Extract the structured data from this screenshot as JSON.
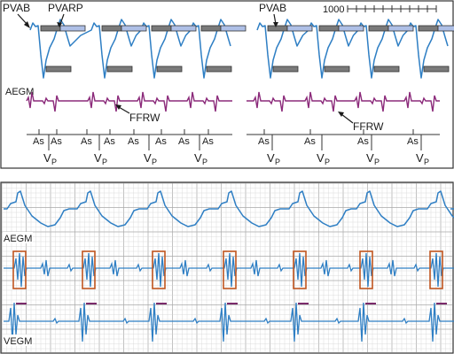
{
  "colors": {
    "ecg": "#2f7fc4",
    "aegm_top": "#8b2a7a",
    "pvab_bar": "#7a7a7a",
    "pvarp_bar": "#aebfe6",
    "bar_outline": "#333333",
    "callout_box": "#c0551f",
    "vegm_marker": "#7a2a6a",
    "grid_minor": "#d4d4d4",
    "grid_major": "#a8a8a8",
    "panel_border": "#333333",
    "text": "#1a1a1a"
  },
  "top_panel": {
    "labels": {
      "pvab_left": "PVAB",
      "pvarp": "PVARP",
      "pvab_right": "PVAB",
      "aegm": "AEGM",
      "ffrw_left": "FFRW",
      "ffrw_right": "FFRW",
      "scale": "1000"
    },
    "markers": {
      "atrial_sense": "As",
      "ventricular_pace_main": "V",
      "ventricular_pace_sub": "P"
    }
  },
  "bottom_panel": {
    "labels": {
      "aegm": "AEGM",
      "vegm": "VEGM"
    }
  }
}
